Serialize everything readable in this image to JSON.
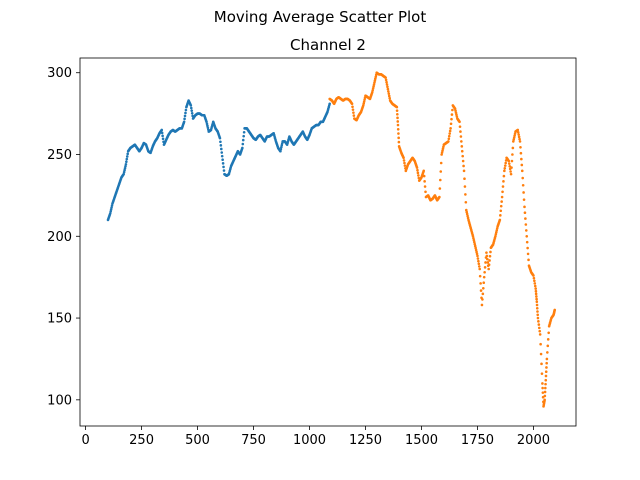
{
  "suptitle": "Moving Average Scatter Plot",
  "chart_data": {
    "type": "scatter",
    "title": "Channel 2",
    "xlabel": "",
    "ylabel": "",
    "xlim": [
      -25,
      2190
    ],
    "ylim": [
      84,
      309
    ],
    "x_ticks": [
      0,
      250,
      500,
      750,
      1000,
      1250,
      1500,
      1750,
      2000
    ],
    "y_ticks": [
      100,
      150,
      200,
      250,
      300
    ],
    "grid": false,
    "legend": "none",
    "series": [
      {
        "color": "#1f77b4",
        "points": [
          [
            100,
            210
          ],
          [
            110,
            214
          ],
          [
            120,
            220
          ],
          [
            130,
            224
          ],
          [
            140,
            228
          ],
          [
            150,
            232
          ],
          [
            160,
            236
          ],
          [
            170,
            238
          ],
          [
            180,
            244
          ],
          [
            190,
            252
          ],
          [
            200,
            254
          ],
          [
            210,
            255
          ],
          [
            220,
            256
          ],
          [
            230,
            254
          ],
          [
            240,
            252
          ],
          [
            250,
            254
          ],
          [
            260,
            257
          ],
          [
            270,
            256
          ],
          [
            280,
            252
          ],
          [
            290,
            251
          ],
          [
            300,
            255
          ],
          [
            310,
            258
          ],
          [
            320,
            260
          ],
          [
            330,
            263
          ],
          [
            340,
            265
          ],
          [
            350,
            256
          ],
          [
            360,
            259
          ],
          [
            370,
            262
          ],
          [
            380,
            264
          ],
          [
            390,
            265
          ],
          [
            400,
            264
          ],
          [
            410,
            265
          ],
          [
            420,
            266
          ],
          [
            430,
            266
          ],
          [
            440,
            270
          ],
          [
            450,
            279
          ],
          [
            460,
            283
          ],
          [
            470,
            280
          ],
          [
            480,
            272
          ],
          [
            490,
            274
          ],
          [
            500,
            275
          ],
          [
            510,
            275
          ],
          [
            520,
            274
          ],
          [
            530,
            274
          ],
          [
            540,
            270
          ],
          [
            550,
            264
          ],
          [
            560,
            265
          ],
          [
            570,
            270
          ],
          [
            580,
            266
          ],
          [
            590,
            264
          ],
          [
            600,
            260
          ],
          [
            610,
            249
          ],
          [
            620,
            238
          ],
          [
            630,
            237
          ],
          [
            640,
            238
          ],
          [
            650,
            243
          ],
          [
            660,
            246
          ],
          [
            670,
            249
          ],
          [
            680,
            252
          ],
          [
            690,
            250
          ],
          [
            700,
            254
          ],
          [
            710,
            266
          ],
          [
            720,
            266
          ],
          [
            730,
            264
          ],
          [
            740,
            262
          ],
          [
            750,
            260
          ],
          [
            760,
            259
          ],
          [
            770,
            261
          ],
          [
            780,
            262
          ],
          [
            790,
            260
          ],
          [
            800,
            258
          ],
          [
            810,
            261
          ],
          [
            820,
            261
          ],
          [
            830,
            262
          ],
          [
            840,
            263
          ],
          [
            850,
            258
          ],
          [
            860,
            254
          ],
          [
            870,
            252
          ],
          [
            880,
            258
          ],
          [
            890,
            258
          ],
          [
            900,
            256
          ],
          [
            910,
            261
          ],
          [
            920,
            258
          ],
          [
            930,
            256
          ],
          [
            940,
            258
          ],
          [
            950,
            260
          ],
          [
            960,
            262
          ],
          [
            970,
            264
          ],
          [
            980,
            261
          ],
          [
            990,
            259
          ],
          [
            1000,
            262
          ],
          [
            1010,
            266
          ],
          [
            1020,
            267
          ],
          [
            1030,
            268
          ],
          [
            1040,
            268
          ],
          [
            1050,
            270
          ],
          [
            1060,
            270
          ],
          [
            1070,
            273
          ],
          [
            1080,
            276
          ],
          [
            1090,
            281
          ]
        ]
      },
      {
        "color": "#ff7f0e",
        "points": [
          [
            1090,
            284
          ],
          [
            1100,
            283
          ],
          [
            1110,
            281
          ],
          [
            1120,
            284
          ],
          [
            1130,
            285
          ],
          [
            1140,
            284
          ],
          [
            1150,
            283
          ],
          [
            1160,
            284
          ],
          [
            1170,
            284
          ],
          [
            1180,
            283
          ],
          [
            1190,
            281
          ],
          [
            1200,
            272
          ],
          [
            1210,
            271
          ],
          [
            1220,
            274
          ],
          [
            1230,
            276
          ],
          [
            1240,
            280
          ],
          [
            1250,
            286
          ],
          [
            1260,
            285
          ],
          [
            1270,
            284
          ],
          [
            1280,
            288
          ],
          [
            1290,
            294
          ],
          [
            1300,
            300
          ],
          [
            1310,
            299
          ],
          [
            1320,
            299
          ],
          [
            1330,
            298
          ],
          [
            1340,
            297
          ],
          [
            1350,
            290
          ],
          [
            1360,
            283
          ],
          [
            1370,
            281
          ],
          [
            1380,
            280
          ],
          [
            1390,
            279
          ],
          [
            1395,
            268
          ],
          [
            1400,
            255
          ],
          [
            1410,
            251
          ],
          [
            1420,
            248
          ],
          [
            1430,
            240
          ],
          [
            1440,
            244
          ],
          [
            1450,
            246
          ],
          [
            1460,
            248
          ],
          [
            1470,
            246
          ],
          [
            1480,
            242
          ],
          [
            1490,
            234
          ],
          [
            1500,
            236
          ],
          [
            1510,
            240
          ],
          [
            1520,
            224
          ],
          [
            1530,
            225
          ],
          [
            1540,
            222
          ],
          [
            1550,
            223
          ],
          [
            1560,
            225
          ],
          [
            1570,
            222
          ],
          [
            1580,
            224
          ],
          [
            1590,
            250
          ],
          [
            1600,
            256
          ],
          [
            1610,
            257
          ],
          [
            1620,
            258
          ],
          [
            1630,
            266
          ],
          [
            1640,
            280
          ],
          [
            1650,
            278
          ],
          [
            1660,
            272
          ],
          [
            1670,
            270
          ],
          [
            1680,
            255
          ],
          [
            1690,
            240
          ],
          [
            1700,
            216
          ],
          [
            1710,
            210
          ],
          [
            1720,
            205
          ],
          [
            1730,
            200
          ],
          [
            1740,
            194
          ],
          [
            1750,
            188
          ],
          [
            1760,
            180
          ],
          [
            1770,
            158
          ],
          [
            1780,
            175
          ],
          [
            1790,
            190
          ],
          [
            1800,
            180
          ],
          [
            1810,
            193
          ],
          [
            1820,
            195
          ],
          [
            1830,
            200
          ],
          [
            1840,
            206
          ],
          [
            1850,
            210
          ],
          [
            1860,
            224
          ],
          [
            1870,
            240
          ],
          [
            1880,
            248
          ],
          [
            1890,
            246
          ],
          [
            1900,
            238
          ],
          [
            1910,
            258
          ],
          [
            1920,
            264
          ],
          [
            1930,
            265
          ],
          [
            1940,
            258
          ],
          [
            1950,
            240
          ],
          [
            1960,
            218
          ],
          [
            1970,
            200
          ],
          [
            1980,
            182
          ],
          [
            1990,
            178
          ],
          [
            2000,
            176
          ],
          [
            2010,
            168
          ],
          [
            2015,
            160
          ],
          [
            2020,
            150
          ],
          [
            2030,
            140
          ],
          [
            2040,
            110
          ],
          [
            2045,
            96
          ],
          [
            2050,
            100
          ],
          [
            2055,
            112
          ],
          [
            2060,
            125
          ],
          [
            2070,
            145
          ],
          [
            2080,
            150
          ],
          [
            2090,
            152
          ],
          [
            2095,
            155
          ]
        ]
      }
    ]
  }
}
